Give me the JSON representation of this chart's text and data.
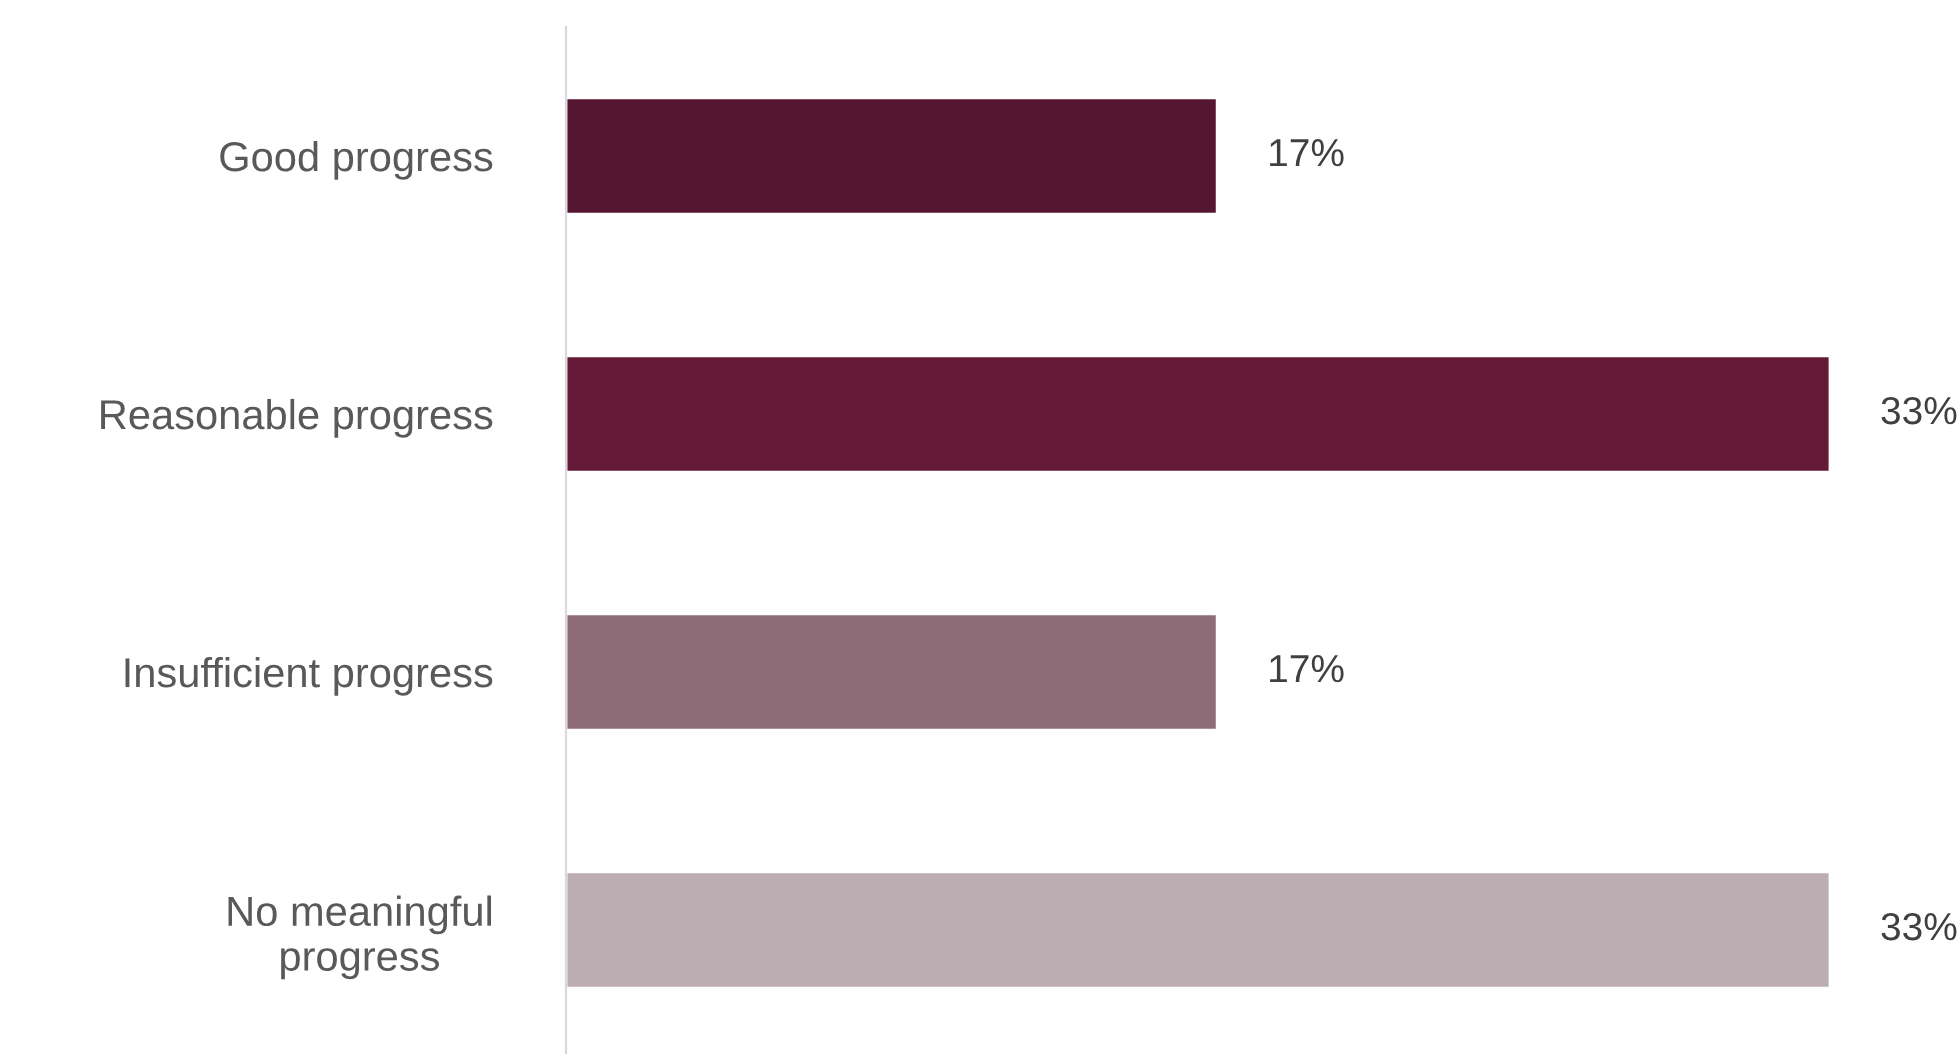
{
  "chart_data": {
    "type": "bar",
    "orientation": "horizontal",
    "categories": [
      "Good progress",
      "Reasonable progress",
      "Insufficient progress",
      "No meaningful\nprogress"
    ],
    "values": [
      17,
      33,
      17,
      33
    ],
    "colors": [
      "#541631",
      "#641a36",
      "#8f6a77",
      "#bcadb3"
    ],
    "value_labels": [
      "17%",
      "33%",
      "17%",
      "33%"
    ],
    "grid": false,
    "legend": false
  }
}
